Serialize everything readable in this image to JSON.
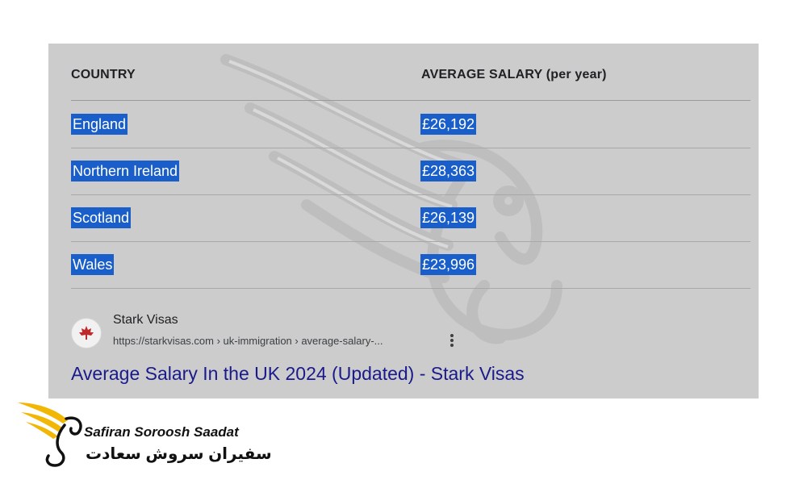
{
  "table": {
    "headers": {
      "country": "COUNTRY",
      "salary": "AVERAGE SALARY (per year)"
    },
    "rows": [
      {
        "country": "England",
        "salary": "£26,192"
      },
      {
        "country": "Northern Ireland",
        "salary": "£28,363"
      },
      {
        "country": "Scotland",
        "salary": "£26,139"
      },
      {
        "country": "Wales",
        "salary": "£23,996"
      }
    ],
    "selection_color": "#1a5fc9"
  },
  "search_result": {
    "site_name": "Stark Visas",
    "url": "https://starkvisas.com › uk-immigration › average-salary-...",
    "title": "Average Salary In the UK 2024 (Updated) - Stark Visas",
    "favicon_icon": "maple-leaf-icon",
    "title_color": "#1a1a8c"
  },
  "logo": {
    "text_en": "Safiran Soroosh Saadat",
    "text_fa": "سفیران سروش سعادت",
    "accent_color": "#f2b705"
  }
}
